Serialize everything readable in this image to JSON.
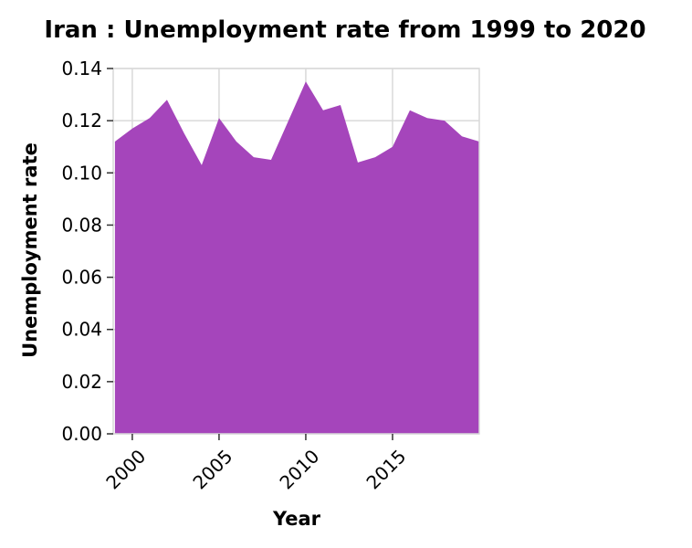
{
  "chart_data": {
    "type": "area",
    "title": "Iran : Unemployment rate from 1999 to 2020",
    "xlabel": "Year",
    "ylabel": "Unemployment rate",
    "x": [
      1999,
      2000,
      2001,
      2002,
      2003,
      2004,
      2005,
      2006,
      2007,
      2008,
      2009,
      2010,
      2011,
      2012,
      2013,
      2014,
      2015,
      2016,
      2017,
      2018,
      2019,
      2020
    ],
    "series": [
      {
        "values": [
          0.112,
          0.117,
          0.121,
          0.128,
          0.115,
          0.103,
          0.121,
          0.112,
          0.106,
          0.105,
          0.12,
          0.135,
          0.124,
          0.126,
          0.104,
          0.106,
          0.11,
          0.124,
          0.121,
          0.12,
          0.114,
          0.112
        ]
      }
    ],
    "xlim": [
      1998.9,
      2020
    ],
    "ylim": [
      0.0,
      0.14
    ],
    "xticks": [
      "2000",
      "2005",
      "2010",
      "2015"
    ],
    "yticks": [
      "0.00",
      "0.02",
      "0.04",
      "0.06",
      "0.08",
      "0.10",
      "0.12",
      "0.14"
    ],
    "grid": true,
    "fill_color": "#a545bb"
  }
}
